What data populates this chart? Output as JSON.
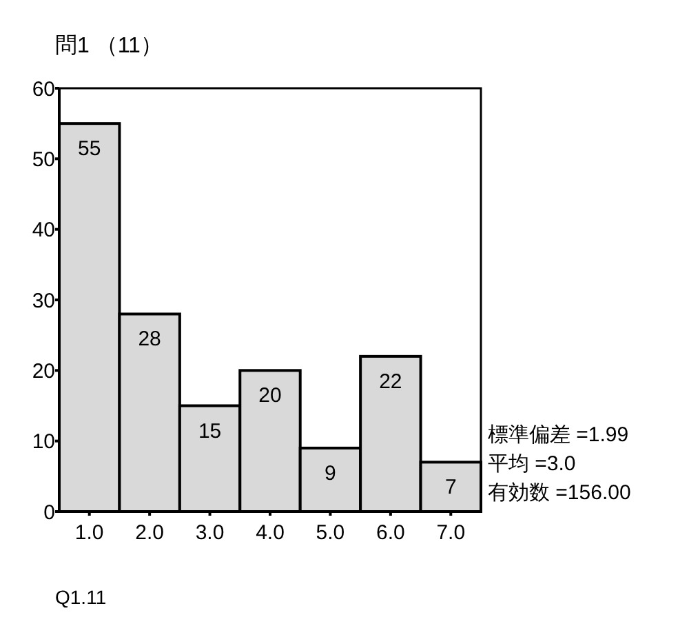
{
  "chart_data": {
    "type": "histogram",
    "title": "問1 （11）",
    "xlabel": "Q1.11",
    "bins": [
      0.5,
      1.5,
      2.5,
      3.5,
      4.5,
      5.5,
      6.5,
      7.5
    ],
    "values": [
      55,
      28,
      15,
      20,
      9,
      22,
      7
    ],
    "color": "#d9d9d9",
    "xlim": [
      0.5,
      7.5
    ],
    "xticks": [
      {
        "value": 1,
        "label": "1.0"
      },
      {
        "value": 2,
        "label": "2.0"
      },
      {
        "value": 3,
        "label": "3.0"
      },
      {
        "value": 4,
        "label": "4.0"
      },
      {
        "value": 5,
        "label": "5.0"
      },
      {
        "value": 6,
        "label": "6.0"
      },
      {
        "value": 7,
        "label": "7.0"
      }
    ],
    "ylim": [
      0,
      60
    ],
    "yticks": [
      0,
      10,
      20,
      30,
      40,
      50,
      60
    ],
    "data_labels": true,
    "annotations": [
      "標準偏差 =1.99",
      "平均 =3.0",
      "有効数 =156.00"
    ]
  }
}
